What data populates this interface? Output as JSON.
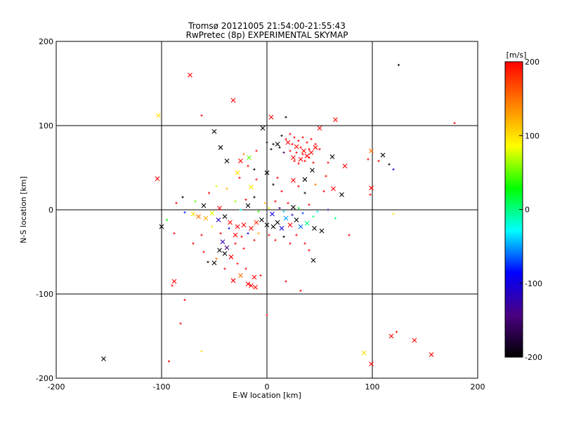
{
  "chart_data": {
    "type": "scatter",
    "title": "Tromsø 20121005 21:54:00-21:55:43",
    "subtitle": "RwPretec (8p) EXPERIMENTAL SKYMAP",
    "xlabel": "E-W location [km]",
    "ylabel": "N-S location [km]",
    "xlim": [
      -200,
      200
    ],
    "ylim": [
      -200,
      200
    ],
    "xticks": [
      "-200",
      "-100",
      "0",
      "100",
      "200"
    ],
    "yticks": [
      "-200",
      "-100",
      "0",
      "100",
      "200"
    ],
    "grid": true,
    "colorbar": {
      "label": "[m/s]",
      "min": -200,
      "max": 200,
      "ticks": [
        "200",
        "100",
        "0",
        "-100",
        "-200"
      ],
      "colormap": [
        "#000000",
        "#4b0082",
        "#0000ff",
        "#00ffff",
        "#00ff00",
        "#ffff00",
        "#ff8000",
        "#ff0000"
      ]
    },
    "markers": [
      {
        "x": -73,
        "y": 160,
        "v": 200,
        "m": "x"
      },
      {
        "x": -32,
        "y": 130,
        "v": 200,
        "m": "x"
      },
      {
        "x": -103,
        "y": 112,
        "v": 100,
        "m": "x"
      },
      {
        "x": 4,
        "y": 110,
        "v": 200,
        "m": "x"
      },
      {
        "x": -62,
        "y": 112,
        "v": 200,
        "m": "+"
      },
      {
        "x": 65,
        "y": 107,
        "v": 200,
        "m": "x"
      },
      {
        "x": 125,
        "y": 172,
        "v": -200,
        "m": "+"
      },
      {
        "x": 178,
        "y": 103,
        "v": 200,
        "m": "+"
      },
      {
        "x": -50,
        "y": 93,
        "v": -200,
        "m": "x"
      },
      {
        "x": -4,
        "y": 97,
        "v": -200,
        "m": "x"
      },
      {
        "x": 50,
        "y": 97,
        "v": 200,
        "m": "x"
      },
      {
        "x": 18,
        "y": 110,
        "v": -200,
        "m": "+"
      },
      {
        "x": -44,
        "y": 74,
        "v": -200,
        "m": "x"
      },
      {
        "x": 10,
        "y": 78,
        "v": -200,
        "m": "x"
      },
      {
        "x": 20,
        "y": 80,
        "v": 200,
        "m": "x"
      },
      {
        "x": 28,
        "y": 75,
        "v": 200,
        "m": "x"
      },
      {
        "x": 35,
        "y": 70,
        "v": 200,
        "m": "x"
      },
      {
        "x": 42,
        "y": 68,
        "v": 200,
        "m": "x"
      },
      {
        "x": 25,
        "y": 62,
        "v": 200,
        "m": "x"
      },
      {
        "x": 32,
        "y": 60,
        "v": 200,
        "m": "x"
      },
      {
        "x": 38,
        "y": 64,
        "v": 200,
        "m": "x"
      },
      {
        "x": 46,
        "y": 74,
        "v": 200,
        "m": "x"
      },
      {
        "x": 62,
        "y": 63,
        "v": -200,
        "m": "x"
      },
      {
        "x": 99,
        "y": 70,
        "v": 150,
        "m": "x"
      },
      {
        "x": 110,
        "y": 65,
        "v": -200,
        "m": "x"
      },
      {
        "x": 116,
        "y": 54,
        "v": -200,
        "m": "+"
      },
      {
        "x": 74,
        "y": 52,
        "v": 200,
        "m": "x"
      },
      {
        "x": -38,
        "y": 58,
        "v": -200,
        "m": "x"
      },
      {
        "x": -25,
        "y": 58,
        "v": 200,
        "m": "x"
      },
      {
        "x": -17,
        "y": 62,
        "v": 50,
        "m": "x"
      },
      {
        "x": -28,
        "y": 44,
        "v": 100,
        "m": "x"
      },
      {
        "x": 0,
        "y": 44,
        "v": -200,
        "m": "x"
      },
      {
        "x": 43,
        "y": 47,
        "v": -200,
        "m": "x"
      },
      {
        "x": 36,
        "y": 36,
        "v": -200,
        "m": "x"
      },
      {
        "x": 25,
        "y": 35,
        "v": 200,
        "m": "x"
      },
      {
        "x": -15,
        "y": 27,
        "v": 100,
        "m": "x"
      },
      {
        "x": 63,
        "y": 25,
        "v": 200,
        "m": "x"
      },
      {
        "x": 71,
        "y": 18,
        "v": -200,
        "m": "x"
      },
      {
        "x": 99,
        "y": 26,
        "v": 200,
        "m": "x"
      },
      {
        "x": -104,
        "y": 37,
        "v": 200,
        "m": "x"
      },
      {
        "x": -12,
        "y": 15,
        "v": -200,
        "m": "+"
      },
      {
        "x": -60,
        "y": 5,
        "v": -200,
        "m": "x"
      },
      {
        "x": -45,
        "y": 2,
        "v": 200,
        "m": "x"
      },
      {
        "x": -18,
        "y": 5,
        "v": -200,
        "m": "x"
      },
      {
        "x": 25,
        "y": 3,
        "v": -200,
        "m": "x"
      },
      {
        "x": -100,
        "y": -20,
        "v": -200,
        "m": "x"
      },
      {
        "x": -70,
        "y": -5,
        "v": 100,
        "m": "x"
      },
      {
        "x": -65,
        "y": -8,
        "v": 150,
        "m": "x"
      },
      {
        "x": -58,
        "y": -10,
        "v": 120,
        "m": "x"
      },
      {
        "x": -52,
        "y": -4,
        "v": 80,
        "m": "x"
      },
      {
        "x": -46,
        "y": -12,
        "v": -120,
        "m": "x"
      },
      {
        "x": -40,
        "y": -8,
        "v": -200,
        "m": "x"
      },
      {
        "x": -35,
        "y": -15,
        "v": 200,
        "m": "x"
      },
      {
        "x": -28,
        "y": -20,
        "v": 200,
        "m": "x"
      },
      {
        "x": -22,
        "y": -18,
        "v": 200,
        "m": "x"
      },
      {
        "x": -15,
        "y": -22,
        "v": 200,
        "m": "x"
      },
      {
        "x": -10,
        "y": -15,
        "v": 180,
        "m": "x"
      },
      {
        "x": -5,
        "y": -12,
        "v": -200,
        "m": "x"
      },
      {
        "x": 0,
        "y": -18,
        "v": -200,
        "m": "x"
      },
      {
        "x": 6,
        "y": -20,
        "v": -200,
        "m": "x"
      },
      {
        "x": 10,
        "y": -15,
        "v": -200,
        "m": "x"
      },
      {
        "x": 14,
        "y": -22,
        "v": -100,
        "m": "x"
      },
      {
        "x": 18,
        "y": -10,
        "v": -50,
        "m": "x"
      },
      {
        "x": 22,
        "y": -18,
        "v": 200,
        "m": "x"
      },
      {
        "x": 28,
        "y": -12,
        "v": -200,
        "m": "x"
      },
      {
        "x": 32,
        "y": -20,
        "v": -60,
        "m": "x"
      },
      {
        "x": 38,
        "y": -16,
        "v": 0,
        "m": "x"
      },
      {
        "x": 45,
        "y": -22,
        "v": -200,
        "m": "x"
      },
      {
        "x": 52,
        "y": -25,
        "v": -200,
        "m": "x"
      },
      {
        "x": 5,
        "y": -5,
        "v": -100,
        "m": "x"
      },
      {
        "x": -30,
        "y": -30,
        "v": 200,
        "m": "x"
      },
      {
        "x": -42,
        "y": -38,
        "v": -120,
        "m": "x"
      },
      {
        "x": -45,
        "y": -48,
        "v": -200,
        "m": "x"
      },
      {
        "x": -40,
        "y": -52,
        "v": -200,
        "m": "x"
      },
      {
        "x": -38,
        "y": -45,
        "v": -150,
        "m": "x"
      },
      {
        "x": -34,
        "y": -56,
        "v": 200,
        "m": "x"
      },
      {
        "x": -50,
        "y": -63,
        "v": -200,
        "m": "x"
      },
      {
        "x": -25,
        "y": -78,
        "v": 150,
        "m": "x"
      },
      {
        "x": -32,
        "y": -84,
        "v": 200,
        "m": "x"
      },
      {
        "x": -12,
        "y": -80,
        "v": 200,
        "m": "x"
      },
      {
        "x": -18,
        "y": -88,
        "v": 200,
        "m": "x"
      },
      {
        "x": -15,
        "y": -90,
        "v": 200,
        "m": "x"
      },
      {
        "x": -11,
        "y": -92,
        "v": 200,
        "m": "x"
      },
      {
        "x": 44,
        "y": -60,
        "v": -200,
        "m": "x"
      },
      {
        "x": -88,
        "y": -85,
        "v": 200,
        "m": "x"
      },
      {
        "x": -155,
        "y": -177,
        "v": -200,
        "m": "x"
      },
      {
        "x": 92,
        "y": -170,
        "v": 100,
        "m": "x"
      },
      {
        "x": 99,
        "y": -183,
        "v": 200,
        "m": "x"
      },
      {
        "x": 118,
        "y": -150,
        "v": 200,
        "m": "x"
      },
      {
        "x": 140,
        "y": -155,
        "v": 200,
        "m": "x"
      },
      {
        "x": 156,
        "y": -172,
        "v": 200,
        "m": "x"
      },
      {
        "x": -78,
        "y": -107,
        "v": 200,
        "m": "+"
      },
      {
        "x": -82,
        "y": -135,
        "v": 200,
        "m": "+"
      },
      {
        "x": -93,
        "y": -180,
        "v": 200,
        "m": "+"
      },
      {
        "x": -62,
        "y": -168,
        "v": 100,
        "m": "+"
      },
      {
        "x": 0,
        "y": -125,
        "v": 200,
        "m": "+"
      },
      {
        "x": 123,
        "y": -145,
        "v": 200,
        "m": "+"
      },
      {
        "x": 120,
        "y": -5,
        "v": 100,
        "m": "+"
      },
      {
        "x": 98,
        "y": 18,
        "v": 200,
        "m": "+"
      },
      {
        "x": 65,
        "y": -10,
        "v": 0,
        "m": "+"
      },
      {
        "x": 58,
        "y": 0,
        "v": -150,
        "m": "+"
      },
      {
        "x": 78,
        "y": -30,
        "v": 200,
        "m": "+"
      },
      {
        "x": -95,
        "y": -12,
        "v": 30,
        "m": "+"
      },
      {
        "x": -88,
        "y": -28,
        "v": 200,
        "m": "+"
      },
      {
        "x": -86,
        "y": 8,
        "v": 200,
        "m": "+"
      },
      {
        "x": -78,
        "y": -3,
        "v": -80,
        "m": "+"
      },
      {
        "x": -80,
        "y": 15,
        "v": -200,
        "m": "+"
      },
      {
        "x": -68,
        "y": 10,
        "v": 50,
        "m": "+"
      },
      {
        "x": -62,
        "y": -30,
        "v": 200,
        "m": "+"
      },
      {
        "x": -55,
        "y": 20,
        "v": 200,
        "m": "+"
      },
      {
        "x": -48,
        "y": 28,
        "v": 80,
        "m": "+"
      },
      {
        "x": -38,
        "y": 25,
        "v": 120,
        "m": "+"
      },
      {
        "x": -30,
        "y": 10,
        "v": 60,
        "m": "+"
      },
      {
        "x": -25,
        "y": 0,
        "v": -20,
        "m": "+"
      },
      {
        "x": -20,
        "y": 12,
        "v": 200,
        "m": "+"
      },
      {
        "x": -8,
        "y": -2,
        "v": 40,
        "m": "+"
      },
      {
        "x": -2,
        "y": 8,
        "v": 120,
        "m": "+"
      },
      {
        "x": 2,
        "y": 2,
        "v": 80,
        "m": "+"
      },
      {
        "x": 8,
        "y": 10,
        "v": 200,
        "m": "+"
      },
      {
        "x": 12,
        "y": 2,
        "v": -150,
        "m": "+"
      },
      {
        "x": 16,
        "y": -2,
        "v": -40,
        "m": "+"
      },
      {
        "x": 20,
        "y": 8,
        "v": 200,
        "m": "+"
      },
      {
        "x": 24,
        "y": -6,
        "v": -120,
        "m": "+"
      },
      {
        "x": 30,
        "y": 2,
        "v": 20,
        "m": "+"
      },
      {
        "x": 34,
        "y": -4,
        "v": -70,
        "m": "+"
      },
      {
        "x": 40,
        "y": 6,
        "v": 200,
        "m": "+"
      },
      {
        "x": 44,
        "y": -8,
        "v": 0,
        "m": "+"
      },
      {
        "x": 48,
        "y": -2,
        "v": -30,
        "m": "+"
      },
      {
        "x": 36,
        "y": 20,
        "v": -200,
        "m": "+"
      },
      {
        "x": 30,
        "y": 28,
        "v": 200,
        "m": "+"
      },
      {
        "x": 14,
        "y": 22,
        "v": 200,
        "m": "+"
      },
      {
        "x": 10,
        "y": 38,
        "v": 200,
        "m": "+"
      },
      {
        "x": -10,
        "y": 36,
        "v": 200,
        "m": "+"
      },
      {
        "x": 6,
        "y": 30,
        "v": -200,
        "m": "+"
      },
      {
        "x": 46,
        "y": 30,
        "v": 150,
        "m": "+"
      },
      {
        "x": 56,
        "y": 40,
        "v": 200,
        "m": "+"
      },
      {
        "x": 54,
        "y": 22,
        "v": 200,
        "m": "+"
      },
      {
        "x": -52,
        "y": -20,
        "v": 100,
        "m": "+"
      },
      {
        "x": -44,
        "y": -28,
        "v": 200,
        "m": "+"
      },
      {
        "x": -36,
        "y": -22,
        "v": -80,
        "m": "+"
      },
      {
        "x": -30,
        "y": -40,
        "v": 200,
        "m": "+"
      },
      {
        "x": -24,
        "y": -32,
        "v": 200,
        "m": "+"
      },
      {
        "x": -22,
        "y": -46,
        "v": 200,
        "m": "+"
      },
      {
        "x": -18,
        "y": -28,
        "v": -100,
        "m": "+"
      },
      {
        "x": -12,
        "y": -36,
        "v": 200,
        "m": "+"
      },
      {
        "x": -8,
        "y": -28,
        "v": 120,
        "m": "+"
      },
      {
        "x": 2,
        "y": -30,
        "v": 200,
        "m": "+"
      },
      {
        "x": 8,
        "y": -36,
        "v": 200,
        "m": "+"
      },
      {
        "x": 16,
        "y": -32,
        "v": -200,
        "m": "+"
      },
      {
        "x": 22,
        "y": -40,
        "v": 200,
        "m": "+"
      },
      {
        "x": 28,
        "y": -30,
        "v": 200,
        "m": "+"
      },
      {
        "x": 36,
        "y": -40,
        "v": 200,
        "m": "+"
      },
      {
        "x": 40,
        "y": -48,
        "v": 200,
        "m": "+"
      },
      {
        "x": -60,
        "y": -50,
        "v": 200,
        "m": "+"
      },
      {
        "x": -56,
        "y": -62,
        "v": -200,
        "m": "+"
      },
      {
        "x": -48,
        "y": -58,
        "v": 150,
        "m": "+"
      },
      {
        "x": -40,
        "y": -70,
        "v": 200,
        "m": "+"
      },
      {
        "x": -28,
        "y": -64,
        "v": 200,
        "m": "+"
      },
      {
        "x": -20,
        "y": -70,
        "v": 200,
        "m": "+"
      },
      {
        "x": -6,
        "y": -78,
        "v": 200,
        "m": "+"
      },
      {
        "x": 18,
        "y": -85,
        "v": 200,
        "m": "+"
      },
      {
        "x": 32,
        "y": -96,
        "v": 200,
        "m": "+"
      },
      {
        "x": -70,
        "y": -40,
        "v": 200,
        "m": "+"
      },
      {
        "x": -90,
        "y": -90,
        "v": 200,
        "m": "+"
      },
      {
        "x": 14,
        "y": 88,
        "v": -200,
        "m": "+"
      },
      {
        "x": 18,
        "y": 84,
        "v": 200,
        "m": "+"
      },
      {
        "x": 22,
        "y": 90,
        "v": 200,
        "m": "+"
      },
      {
        "x": 26,
        "y": 86,
        "v": 200,
        "m": "+"
      },
      {
        "x": 30,
        "y": 82,
        "v": 200,
        "m": "+"
      },
      {
        "x": 34,
        "y": 86,
        "v": 200,
        "m": "+"
      },
      {
        "x": 38,
        "y": 80,
        "v": 200,
        "m": "+"
      },
      {
        "x": 42,
        "y": 84,
        "v": 200,
        "m": "+"
      },
      {
        "x": 46,
        "y": 78,
        "v": 200,
        "m": "+"
      },
      {
        "x": 50,
        "y": 72,
        "v": 200,
        "m": "+"
      },
      {
        "x": 22,
        "y": 70,
        "v": 200,
        "m": "+"
      },
      {
        "x": 28,
        "y": 68,
        "v": 200,
        "m": "+"
      },
      {
        "x": 34,
        "y": 66,
        "v": 200,
        "m": "+"
      },
      {
        "x": 40,
        "y": 62,
        "v": 200,
        "m": "+"
      },
      {
        "x": 44,
        "y": 56,
        "v": 200,
        "m": "+"
      },
      {
        "x": 30,
        "y": 55,
        "v": 200,
        "m": "+"
      },
      {
        "x": 26,
        "y": 58,
        "v": 200,
        "m": "+"
      },
      {
        "x": 36,
        "y": 58,
        "v": 200,
        "m": "+"
      },
      {
        "x": 24,
        "y": 78,
        "v": 200,
        "m": "+"
      },
      {
        "x": 32,
        "y": 74,
        "v": 200,
        "m": "+"
      },
      {
        "x": 40,
        "y": 72,
        "v": 200,
        "m": "+"
      },
      {
        "x": 6,
        "y": 78,
        "v": -200,
        "m": "+"
      },
      {
        "x": 4,
        "y": 72,
        "v": -200,
        "m": "+"
      },
      {
        "x": 12,
        "y": 74,
        "v": -200,
        "m": "+"
      },
      {
        "x": 0,
        "y": 80,
        "v": -200,
        "m": "+"
      },
      {
        "x": 16,
        "y": 68,
        "v": -150,
        "m": "+"
      },
      {
        "x": -10,
        "y": 70,
        "v": 200,
        "m": "+"
      },
      {
        "x": -22,
        "y": 66,
        "v": 150,
        "m": "+"
      },
      {
        "x": -18,
        "y": 52,
        "v": 200,
        "m": "+"
      },
      {
        "x": -12,
        "y": 48,
        "v": -200,
        "m": "+"
      },
      {
        "x": -26,
        "y": 38,
        "v": 200,
        "m": "+"
      },
      {
        "x": 58,
        "y": 56,
        "v": 200,
        "m": "+"
      },
      {
        "x": 96,
        "y": 60,
        "v": 200,
        "m": "+"
      },
      {
        "x": 106,
        "y": 58,
        "v": 200,
        "m": "+"
      },
      {
        "x": 120,
        "y": 48,
        "v": -100,
        "m": "+"
      }
    ]
  }
}
